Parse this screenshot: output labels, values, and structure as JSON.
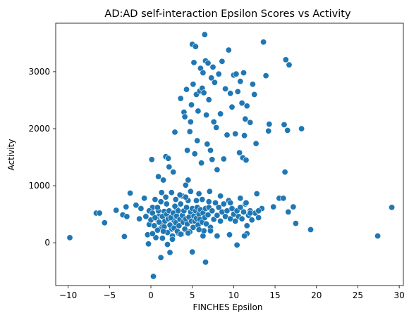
{
  "chart_data": {
    "type": "scatter",
    "title": "AD:AD self-interaction Epsilon Scores vs Activity",
    "xlabel": "FINCHES Epsilon",
    "ylabel": "Activity",
    "xlim": [
      -11.5,
      30.5
    ],
    "ylim": [
      -750,
      3850
    ],
    "xticks": [
      -10,
      -5,
      0,
      5,
      10,
      15,
      20,
      25,
      30
    ],
    "yticks": [
      0,
      1000,
      2000,
      3000
    ],
    "grid": false,
    "point_color": "#1f77b4",
    "point_edge_color": "#ffffff",
    "series": [
      {
        "points": [
          [
            -9.8,
            90
          ],
          [
            -6.6,
            520
          ],
          [
            -6.2,
            520
          ],
          [
            -5.6,
            350
          ],
          [
            -4.2,
            570
          ],
          [
            -3.4,
            490
          ],
          [
            -3.2,
            110
          ],
          [
            -3.0,
            630
          ],
          [
            -2.9,
            460
          ],
          [
            -2.5,
            870
          ],
          [
            -1.8,
            660
          ],
          [
            -1.4,
            420
          ],
          [
            -1.2,
            600
          ],
          [
            -0.8,
            780
          ],
          [
            -0.6,
            470
          ],
          [
            -0.4,
            140
          ],
          [
            -0.3,
            -20
          ],
          [
            -0.2,
            320
          ],
          [
            0.1,
            1460
          ],
          [
            0.2,
            620
          ],
          [
            0.3,
            -590
          ],
          [
            0.5,
            760
          ],
          [
            0.6,
            90
          ],
          [
            0.9,
            1160
          ],
          [
            1.0,
            470
          ],
          [
            1.2,
            -260
          ],
          [
            1.3,
            880
          ],
          [
            1.5,
            1100
          ],
          [
            1.6,
            550
          ],
          [
            1.8,
            1510
          ],
          [
            1.9,
            680
          ],
          [
            2.0,
            -30
          ],
          [
            2.1,
            1480
          ],
          [
            2.2,
            1330
          ],
          [
            2.3,
            -170
          ],
          [
            2.5,
            240
          ],
          [
            2.7,
            1240
          ],
          [
            2.8,
            390
          ],
          [
            2.9,
            1940
          ],
          [
            3.0,
            760
          ],
          [
            3.1,
            600
          ],
          [
            3.3,
            170
          ],
          [
            3.6,
            2530
          ],
          [
            3.8,
            820
          ],
          [
            4.0,
            2290
          ],
          [
            4.1,
            2210
          ],
          [
            4.2,
            1010
          ],
          [
            4.3,
            2690
          ],
          [
            4.4,
            1620
          ],
          [
            4.5,
            1100
          ],
          [
            4.7,
            1950
          ],
          [
            4.8,
            2120
          ],
          [
            4.9,
            2420
          ],
          [
            5.0,
            3480
          ],
          [
            5.1,
            2780
          ],
          [
            5.2,
            3160
          ],
          [
            5.3,
            1560
          ],
          [
            5.4,
            3440
          ],
          [
            5.5,
            2600
          ],
          [
            5.6,
            1790
          ],
          [
            5.7,
            2310
          ],
          [
            5.8,
            860
          ],
          [
            5.9,
            2660
          ],
          [
            6.0,
            3060
          ],
          [
            6.1,
            1400
          ],
          [
            6.2,
            2710
          ],
          [
            6.3,
            2980
          ],
          [
            6.4,
            2630
          ],
          [
            6.5,
            3650
          ],
          [
            6.6,
            3190
          ],
          [
            6.7,
            2240
          ],
          [
            6.8,
            1730
          ],
          [
            6.9,
            3150
          ],
          [
            7.0,
            2510
          ],
          [
            7.1,
            900
          ],
          [
            7.2,
            1620
          ],
          [
            7.3,
            2890
          ],
          [
            7.4,
            1460
          ],
          [
            7.5,
            3080
          ],
          [
            7.6,
            2120
          ],
          [
            7.7,
            2810
          ],
          [
            7.9,
            2020
          ],
          [
            8.0,
            1280
          ],
          [
            8.2,
            2960
          ],
          [
            8.4,
            2260
          ],
          [
            8.6,
            3180
          ],
          [
            8.8,
            1470
          ],
          [
            9.0,
            2700
          ],
          [
            9.2,
            1890
          ],
          [
            9.4,
            3380
          ],
          [
            9.6,
            2620
          ],
          [
            9.8,
            2380
          ],
          [
            10.0,
            2940
          ],
          [
            10.2,
            1910
          ],
          [
            10.3,
            2960
          ],
          [
            10.5,
            2650
          ],
          [
            10.7,
            1580
          ],
          [
            10.8,
            2830
          ],
          [
            11.0,
            2450
          ],
          [
            11.1,
            1490
          ],
          [
            11.2,
            2980
          ],
          [
            11.3,
            1880
          ],
          [
            11.4,
            2170
          ],
          [
            11.5,
            1450
          ],
          [
            11.6,
            2400
          ],
          [
            12.0,
            2110
          ],
          [
            12.3,
            2780
          ],
          [
            12.5,
            2600
          ],
          [
            12.7,
            1740
          ],
          [
            13.6,
            3520
          ],
          [
            13.9,
            2930
          ],
          [
            14.2,
            1960
          ],
          [
            14.3,
            2080
          ],
          [
            14.8,
            630
          ],
          [
            15.5,
            780
          ],
          [
            16.0,
            780
          ],
          [
            16.1,
            2070
          ],
          [
            16.2,
            1240
          ],
          [
            16.3,
            3210
          ],
          [
            16.5,
            1970
          ],
          [
            16.7,
            3120
          ],
          [
            16.6,
            540
          ],
          [
            17.2,
            630
          ],
          [
            17.5,
            340
          ],
          [
            18.2,
            2000
          ],
          [
            19.3,
            230
          ],
          [
            27.4,
            120
          ],
          [
            29.1,
            620
          ],
          [
            0.4,
            300
          ],
          [
            0.7,
            420
          ],
          [
            0.9,
            560
          ],
          [
            1.1,
            240
          ],
          [
            1.3,
            340
          ],
          [
            1.4,
            460
          ],
          [
            1.6,
            280
          ],
          [
            1.7,
            380
          ],
          [
            1.9,
            500
          ],
          [
            2.0,
            180
          ],
          [
            2.1,
            420
          ],
          [
            2.2,
            560
          ],
          [
            2.3,
            310
          ],
          [
            2.4,
            440
          ],
          [
            2.6,
            120
          ],
          [
            2.7,
            520
          ],
          [
            2.8,
            260
          ],
          [
            2.9,
            640
          ],
          [
            3.0,
            350
          ],
          [
            3.1,
            470
          ],
          [
            3.2,
            200
          ],
          [
            3.3,
            560
          ],
          [
            3.4,
            300
          ],
          [
            3.5,
            410
          ],
          [
            3.6,
            680
          ],
          [
            3.7,
            150
          ],
          [
            3.8,
            480
          ],
          [
            3.9,
            360
          ],
          [
            4.0,
            560
          ],
          [
            4.1,
            240
          ],
          [
            4.2,
            420
          ],
          [
            4.3,
            620
          ],
          [
            4.4,
            330
          ],
          [
            4.5,
            740
          ],
          [
            4.6,
            450
          ],
          [
            4.7,
            190
          ],
          [
            4.8,
            540
          ],
          [
            4.9,
            380
          ],
          [
            5.0,
            600
          ],
          [
            5.1,
            270
          ],
          [
            5.2,
            470
          ],
          [
            5.3,
            380
          ],
          [
            5.4,
            560
          ],
          [
            5.5,
            430
          ],
          [
            5.6,
            620
          ],
          [
            5.7,
            310
          ],
          [
            5.8,
            500
          ],
          [
            5.9,
            410
          ],
          [
            6.0,
            580
          ],
          [
            6.2,
            360
          ],
          [
            6.3,
            520
          ],
          [
            6.4,
            210
          ],
          [
            6.5,
            440
          ],
          [
            6.6,
            600
          ],
          [
            6.7,
            330
          ],
          [
            6.9,
            490
          ],
          [
            7.0,
            620
          ],
          [
            7.2,
            270
          ],
          [
            7.4,
            560
          ],
          [
            7.6,
            410
          ],
          [
            7.8,
            700
          ],
          [
            8.0,
            480
          ],
          [
            8.2,
            620
          ],
          [
            8.4,
            380
          ],
          [
            8.6,
            540
          ],
          [
            8.8,
            680
          ],
          [
            9.0,
            460
          ],
          [
            9.2,
            560
          ],
          [
            9.4,
            740
          ],
          [
            9.6,
            420
          ],
          [
            9.8,
            600
          ],
          [
            10.0,
            500
          ],
          [
            10.2,
            380
          ],
          [
            10.4,
            560
          ],
          [
            10.6,
            460
          ],
          [
            10.8,
            620
          ],
          [
            11.0,
            420
          ],
          [
            11.2,
            540
          ],
          [
            11.4,
            680
          ],
          [
            11.6,
            300
          ],
          [
            11.8,
            480
          ],
          [
            12.0,
            560
          ],
          [
            12.2,
            400
          ],
          [
            12.6,
            520
          ],
          [
            13.0,
            440
          ],
          [
            13.4,
            600
          ],
          [
            -0.6,
            460
          ],
          [
            -0.2,
            560
          ],
          [
            0.0,
            400
          ],
          [
            0.2,
            520
          ],
          [
            0.5,
            440
          ],
          [
            0.8,
            620
          ],
          [
            1.0,
            360
          ],
          [
            1.2,
            720
          ],
          [
            1.5,
            200
          ],
          [
            1.8,
            800
          ],
          [
            2.5,
            880
          ],
          [
            3.5,
            840
          ],
          [
            4.2,
            800
          ],
          [
            4.8,
            900
          ],
          [
            5.5,
            740
          ],
          [
            6.2,
            760
          ],
          [
            7.0,
            720
          ],
          [
            8.4,
            820
          ],
          [
            9.6,
            700
          ],
          [
            10.8,
            780
          ],
          [
            11.5,
            700
          ],
          [
            12.8,
            860
          ],
          [
            13.0,
            560
          ],
          [
            11.6,
            160
          ],
          [
            11.3,
            120
          ],
          [
            12.0,
            520
          ],
          [
            10.4,
            -40
          ],
          [
            9.5,
            140
          ],
          [
            8.0,
            120
          ],
          [
            7.2,
            210
          ],
          [
            6.6,
            -340
          ],
          [
            6.3,
            120
          ],
          [
            5.0,
            -160
          ],
          [
            3.6,
            150
          ],
          [
            2.6,
            60
          ],
          [
            1.4,
            80
          ],
          [
            0.8,
            220
          ],
          [
            0.2,
            160
          ],
          [
            4.5,
            170
          ],
          [
            5.8,
            230
          ]
        ]
      }
    ]
  }
}
